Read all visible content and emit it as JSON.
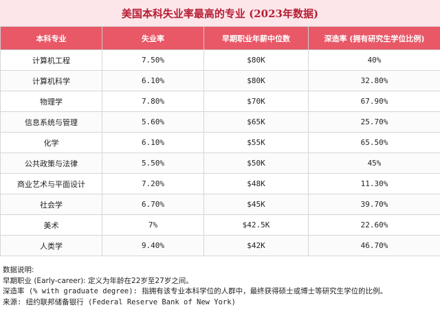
{
  "title": "美国本科失业率最高的专业 (2023年数据)",
  "table": {
    "headers": [
      "本科专业",
      "失业率",
      "早期职业年薪中位数",
      "深造率 (拥有研究生学位比例)"
    ],
    "rows": [
      [
        "计算机工程",
        "7.50%",
        "$80K",
        "40%"
      ],
      [
        "计算机科学",
        "6.10%",
        "$80K",
        "32.80%"
      ],
      [
        "物理学",
        "7.80%",
        "$70K",
        "67.90%"
      ],
      [
        "信息系统与管理",
        "5.60%",
        "$65K",
        "25.70%"
      ],
      [
        "化学",
        "6.10%",
        "$55K",
        "65.50%"
      ],
      [
        "公共政策与法律",
        "5.50%",
        "$50K",
        "45%"
      ],
      [
        "商业艺术与平面设计",
        "7.20%",
        "$48K",
        "11.30%"
      ],
      [
        "社会学",
        "6.70%",
        "$45K",
        "39.70%"
      ],
      [
        "美术",
        "7%",
        "$42.5K",
        "22.60%"
      ],
      [
        "人类学",
        "9.40%",
        "$42K",
        "46.70%"
      ]
    ]
  },
  "notes": [
    "数据说明:",
    "早期职业 (Early-career): 定义为年龄在22岁至27岁之间。",
    "深造率 (% with graduate degree): 指拥有该专业本科学位的人群中，最终获得硕士或博士等研究生学位的比例。",
    "来源: 纽约联邦储备银行 (Federal Reserve Bank of New York)"
  ],
  "colors": {
    "title_bg": "#fde6ea",
    "title_text": "#b51d32",
    "header_bg": "#e85867",
    "header_text": "#ffffff"
  }
}
